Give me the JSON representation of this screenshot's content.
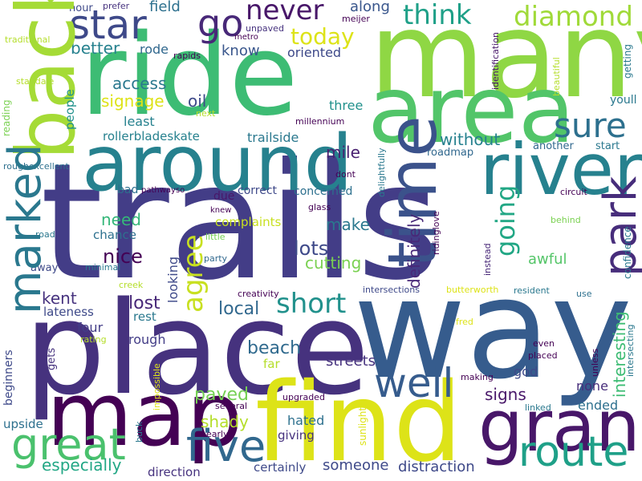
{
  "words": [
    {
      "text": "trails",
      "size": 10,
      "color": "#433d87",
      "dir": "h"
    },
    {
      "text": "way",
      "size": 8,
      "color": "#365c8d",
      "dir": "h"
    },
    {
      "text": "place",
      "size": 7.6,
      "color": "#46327e",
      "dir": "h"
    },
    {
      "text": "many",
      "size": 7,
      "color": "#8fd744",
      "dir": "h"
    },
    {
      "text": "ride",
      "size": 6.6,
      "color": "#3dbc74",
      "dir": "h"
    },
    {
      "text": "find",
      "size": 6.4,
      "color": "#dde318",
      "dir": "h"
    },
    {
      "text": "area",
      "size": 5.6,
      "color": "#52c569",
      "dir": "h"
    },
    {
      "text": "map",
      "size": 5.4,
      "color": "#440154",
      "dir": "h"
    },
    {
      "text": "back",
      "size": 5,
      "color": "#a5db36",
      "dir": "v"
    },
    {
      "text": "around",
      "size": 4.8,
      "color": "#26818e",
      "dir": "h"
    },
    {
      "text": "river",
      "size": 4.4,
      "color": "#26818e",
      "dir": "h"
    },
    {
      "text": "grand",
      "size": 4.4,
      "color": "#481769",
      "dir": "h"
    },
    {
      "text": "time",
      "size": 4.2,
      "color": "#3b528b",
      "dir": "v"
    },
    {
      "text": "well",
      "size": 3.6,
      "color": "#365c8d",
      "dir": "h"
    },
    {
      "text": "route",
      "size": 3.4,
      "color": "#1fa088",
      "dir": "h"
    },
    {
      "text": "great",
      "size": 3.4,
      "color": "#4ac16d",
      "dir": "h"
    },
    {
      "text": "five",
      "size": 3.4,
      "color": "#31688e",
      "dir": "h"
    },
    {
      "text": "star",
      "size": 3.2,
      "color": "#3e4989",
      "dir": "h"
    },
    {
      "text": "go",
      "size": 3,
      "color": "#482878",
      "dir": "h"
    },
    {
      "text": "marked",
      "size": 3,
      "color": "#2a788e",
      "dir": "v"
    },
    {
      "text": "park",
      "size": 3,
      "color": "#472d7b",
      "dir": "v"
    },
    {
      "text": "sure",
      "size": 2.8,
      "color": "#2d708e",
      "dir": "h"
    },
    {
      "text": "diamond",
      "size": 2.4,
      "color": "#a0da39",
      "dir": "h"
    },
    {
      "text": "think",
      "size": 2.4,
      "color": "#1fa088",
      "dir": "h"
    },
    {
      "text": "never",
      "size": 2.4,
      "color": "#481769",
      "dir": "h"
    },
    {
      "text": "short",
      "size": 2.4,
      "color": "#21918c",
      "dir": "h"
    },
    {
      "text": "agree",
      "size": 2.4,
      "color": "#c8e020",
      "dir": "v"
    },
    {
      "text": "going",
      "size": 2.2,
      "color": "#22a785",
      "dir": "v"
    },
    {
      "text": "today",
      "size": 2,
      "color": "#dde318",
      "dir": "h"
    },
    {
      "text": "lots",
      "size": 1.8,
      "color": "#3e4989",
      "dir": "h"
    },
    {
      "text": "nice",
      "size": 1.8,
      "color": "#440154",
      "dir": "h"
    },
    {
      "text": "paved",
      "size": 1.6,
      "color": "#75d054",
      "dir": "h"
    },
    {
      "text": "beach",
      "size": 1.6,
      "color": "#306a8e",
      "dir": "h"
    },
    {
      "text": "lost",
      "size": 1.6,
      "color": "#482878",
      "dir": "h"
    },
    {
      "text": "local",
      "size": 1.6,
      "color": "#31688e",
      "dir": "h"
    },
    {
      "text": "definitely",
      "size": 1.4,
      "color": "#482878",
      "dir": "v"
    },
    {
      "text": "interesting",
      "size": 1.4,
      "color": "#3dbc74",
      "dir": "v"
    },
    {
      "text": "signage",
      "size": 1.4,
      "color": "#dde318",
      "dir": "h"
    },
    {
      "text": "access",
      "size": 1.4,
      "color": "#2a788e",
      "dir": "h"
    },
    {
      "text": "better",
      "size": 1.4,
      "color": "#26818e",
      "dir": "h"
    },
    {
      "text": "know",
      "size": 1.4,
      "color": "#39568c",
      "dir": "h"
    },
    {
      "text": "oil",
      "size": 1.4,
      "color": "#3e4989",
      "dir": "h"
    },
    {
      "text": "need",
      "size": 1.4,
      "color": "#35b779",
      "dir": "h"
    },
    {
      "text": "shady",
      "size": 1.4,
      "color": "#b5de2b",
      "dir": "h"
    },
    {
      "text": "mile",
      "size": 1.4,
      "color": "#481f70",
      "dir": "h"
    },
    {
      "text": "without",
      "size": 1.4,
      "color": "#26818e",
      "dir": "h"
    },
    {
      "text": "make",
      "size": 1.4,
      "color": "#2a788e",
      "dir": "h"
    },
    {
      "text": "signs",
      "size": 1.4,
      "color": "#481769",
      "dir": "h"
    },
    {
      "text": "kent",
      "size": 1.4,
      "color": "#46327e",
      "dir": "h"
    },
    {
      "text": "especially",
      "size": 1.4,
      "color": "#22a785",
      "dir": "h"
    },
    {
      "text": "cutting",
      "size": 1.4,
      "color": "#7ad151",
      "dir": "h"
    },
    {
      "text": "awful",
      "size": 1.2,
      "color": "#54c568",
      "dir": "h"
    },
    {
      "text": "distraction",
      "size": 1.2,
      "color": "#3e4989",
      "dir": "h"
    },
    {
      "text": "someone",
      "size": 1.2,
      "color": "#3e4989",
      "dir": "h"
    },
    {
      "text": "streets",
      "size": 1.2,
      "color": "#46327e",
      "dir": "h"
    },
    {
      "text": "hated",
      "size": 1.2,
      "color": "#2d708e",
      "dir": "h"
    },
    {
      "text": "ended",
      "size": 1.2,
      "color": "#2d708e",
      "dir": "h"
    },
    {
      "text": "none",
      "size": 1.2,
      "color": "#472d7b",
      "dir": "h"
    },
    {
      "text": "four",
      "size": 1.2,
      "color": "#433d87",
      "dir": "h"
    },
    {
      "text": "rough",
      "size": 1.2,
      "color": "#433d87",
      "dir": "h"
    },
    {
      "text": "looking",
      "size": 1.2,
      "color": "#3e4989",
      "dir": "v"
    },
    {
      "text": "along",
      "size": 1.2,
      "color": "#39568c",
      "dir": "h"
    },
    {
      "text": "field",
      "size": 1.2,
      "color": "#2d708e",
      "dir": "h"
    },
    {
      "text": "rode",
      "size": 1.2,
      "color": "#31688e",
      "dir": "h"
    },
    {
      "text": "least",
      "size": 1.2,
      "color": "#26818e",
      "dir": "h"
    },
    {
      "text": "three",
      "size": 1.2,
      "color": "#21918c",
      "dir": "h"
    },
    {
      "text": "trailside",
      "size": 1.2,
      "color": "#2a788e",
      "dir": "h"
    },
    {
      "text": "oriented",
      "size": 1.2,
      "color": "#3e4989",
      "dir": "h"
    },
    {
      "text": "rollerbladeskate",
      "size": 1.2,
      "color": "#26818e",
      "dir": "h"
    },
    {
      "text": "concerned",
      "size": 1.2,
      "color": "#2d708e",
      "dir": "h"
    },
    {
      "text": "correct",
      "size": 1.2,
      "color": "#3e4989",
      "dir": "h"
    },
    {
      "text": "complaints",
      "size": 1.2,
      "color": "#c8e020",
      "dir": "h"
    },
    {
      "text": "chance",
      "size": 1.2,
      "color": "#2d708e",
      "dir": "h"
    },
    {
      "text": "people",
      "size": 1.2,
      "color": "#21918c",
      "dir": "v"
    },
    {
      "text": "lateness",
      "size": 1.2,
      "color": "#3e4989",
      "dir": "h"
    },
    {
      "text": "rest",
      "size": 1.2,
      "color": "#2a788e",
      "dir": "h"
    },
    {
      "text": "gets",
      "size": 1,
      "color": "#46327e",
      "dir": "v"
    },
    {
      "text": "god",
      "size": 1.2,
      "color": "#3e4989",
      "dir": "h"
    },
    {
      "text": "far",
      "size": 1.2,
      "color": "#b5de2b",
      "dir": "h"
    },
    {
      "text": "giving",
      "size": 1.2,
      "color": "#46327e",
      "dir": "h"
    },
    {
      "text": "direction",
      "size": 1.2,
      "color": "#46327e",
      "dir": "h"
    },
    {
      "text": "certainly",
      "size": 1.2,
      "color": "#3e4989",
      "dir": "h"
    },
    {
      "text": "upside",
      "size": 1.2,
      "color": "#2d708e",
      "dir": "h"
    },
    {
      "text": "beginners",
      "size": 1.2,
      "color": "#3e4989",
      "dir": "v"
    },
    {
      "text": "youll",
      "size": 1.2,
      "color": "#2a788e",
      "dir": "h"
    },
    {
      "text": "start",
      "size": 1,
      "color": "#2a788e",
      "dir": "h"
    },
    {
      "text": "another",
      "size": 1,
      "color": "#31688e",
      "dir": "h"
    },
    {
      "text": "bad",
      "size": 1.2,
      "color": "#2d708e",
      "dir": "h"
    },
    {
      "text": "due",
      "size": 1.2,
      "color": "#481769",
      "dir": "h"
    },
    {
      "text": "away",
      "size": 1,
      "color": "#3e4989",
      "dir": "h"
    },
    {
      "text": "hour",
      "size": 1,
      "color": "#3e4989",
      "dir": "h"
    },
    {
      "text": "prefer",
      "size": 0.8,
      "color": "#46327e",
      "dir": "h"
    },
    {
      "text": "unpaved",
      "size": 0.9,
      "color": "#46327e",
      "dir": "h"
    },
    {
      "text": "metro",
      "size": 0.8,
      "color": "#440154",
      "dir": "h"
    },
    {
      "text": "meijer",
      "size": 0.8,
      "color": "#440154",
      "dir": "h"
    },
    {
      "text": "identification",
      "size": 0.8,
      "color": "#481769",
      "dir": "v"
    },
    {
      "text": "getting",
      "size": 0.9,
      "color": "#2a788e",
      "dir": "v"
    },
    {
      "text": "beautiful",
      "size": 0.8,
      "color": "#b5de2b",
      "dir": "v"
    },
    {
      "text": "traditional",
      "size": 0.8,
      "color": "#b5de2b",
      "dir": "h"
    },
    {
      "text": "rapids",
      "size": 0.8,
      "color": "#440154",
      "dir": "h"
    },
    {
      "text": "standale",
      "size": 0.8,
      "color": "#b5de2b",
      "dir": "h"
    },
    {
      "text": "reading",
      "size": 0.9,
      "color": "#7ad151",
      "dir": "v"
    },
    {
      "text": "next",
      "size": 0.8,
      "color": "#b5de2b",
      "dir": "h"
    },
    {
      "text": "millennium",
      "size": 0.8,
      "color": "#440154",
      "dir": "h"
    },
    {
      "text": "roughexcellent",
      "size": 0.8,
      "color": "#2d708e",
      "dir": "h"
    },
    {
      "text": "delightfully",
      "size": 0.8,
      "color": "#2a788e",
      "dir": "v"
    },
    {
      "text": "roadmap",
      "size": 1,
      "color": "#31688e",
      "dir": "h"
    },
    {
      "text": "dont",
      "size": 0.8,
      "color": "#440154",
      "dir": "h"
    },
    {
      "text": "pathwayso",
      "size": 0.8,
      "color": "#440154",
      "dir": "h"
    },
    {
      "text": "circuit",
      "size": 0.8,
      "color": "#440154",
      "dir": "h"
    },
    {
      "text": "confidence",
      "size": 0.9,
      "color": "#2a788e",
      "dir": "v"
    },
    {
      "text": "knew",
      "size": 0.8,
      "color": "#440154",
      "dir": "h"
    },
    {
      "text": "glass",
      "size": 0.8,
      "color": "#440154",
      "dir": "h"
    },
    {
      "text": "ridinglove",
      "size": 0.8,
      "color": "#440154",
      "dir": "v"
    },
    {
      "text": "behind",
      "size": 0.8,
      "color": "#7ad151",
      "dir": "h"
    },
    {
      "text": "road",
      "size": 0.8,
      "color": "#2a788e",
      "dir": "h"
    },
    {
      "text": "little",
      "size": 0.8,
      "color": "#75d054",
      "dir": "h"
    },
    {
      "text": "instead",
      "size": 0.8,
      "color": "#482878",
      "dir": "v"
    },
    {
      "text": "minimal",
      "size": 0.8,
      "color": "#2a788e",
      "dir": "h"
    },
    {
      "text": "party",
      "size": 0.8,
      "color": "#31688e",
      "dir": "h"
    },
    {
      "text": "creek",
      "size": 0.8,
      "color": "#b5de2b",
      "dir": "h"
    },
    {
      "text": "creativity",
      "size": 0.8,
      "color": "#440154",
      "dir": "h"
    },
    {
      "text": "intersections",
      "size": 0.8,
      "color": "#3e4989",
      "dir": "h"
    },
    {
      "text": "butterworth",
      "size": 0.8,
      "color": "#dde318",
      "dir": "h"
    },
    {
      "text": "resident",
      "size": 0.8,
      "color": "#2a788e",
      "dir": "h"
    },
    {
      "text": "use",
      "size": 0.8,
      "color": "#2d708e",
      "dir": "h"
    },
    {
      "text": "fred",
      "size": 0.8,
      "color": "#dde318",
      "dir": "h"
    },
    {
      "text": "rating",
      "size": 0.8,
      "color": "#b5de2b",
      "dir": "h"
    },
    {
      "text": "impossible",
      "size": 0.8,
      "color": "#dde318",
      "dir": "v"
    },
    {
      "text": "even",
      "size": 0.8,
      "color": "#440154",
      "dir": "h"
    },
    {
      "text": "placed",
      "size": 0.8,
      "color": "#440154",
      "dir": "h"
    },
    {
      "text": "intersecting",
      "size": 0.8,
      "color": "#2a788e",
      "dir": "v"
    },
    {
      "text": "unless",
      "size": 0.8,
      "color": "#440154",
      "dir": "v"
    },
    {
      "text": "making",
      "size": 0.8,
      "color": "#440154",
      "dir": "h"
    },
    {
      "text": "upgraded",
      "size": 0.8,
      "color": "#440154",
      "dir": "h"
    },
    {
      "text": "sunlight",
      "size": 0.9,
      "color": "#dde318",
      "dir": "v"
    },
    {
      "text": "linked",
      "size": 0.8,
      "color": "#2a788e",
      "dir": "h"
    },
    {
      "text": "several",
      "size": 0.8,
      "color": "#440154",
      "dir": "h"
    },
    {
      "text": "buck",
      "size": 0.8,
      "color": "#2a788e",
      "dir": "v"
    },
    {
      "text": "nearly",
      "size": 0.8,
      "color": "#440154",
      "dir": "h"
    }
  ]
}
